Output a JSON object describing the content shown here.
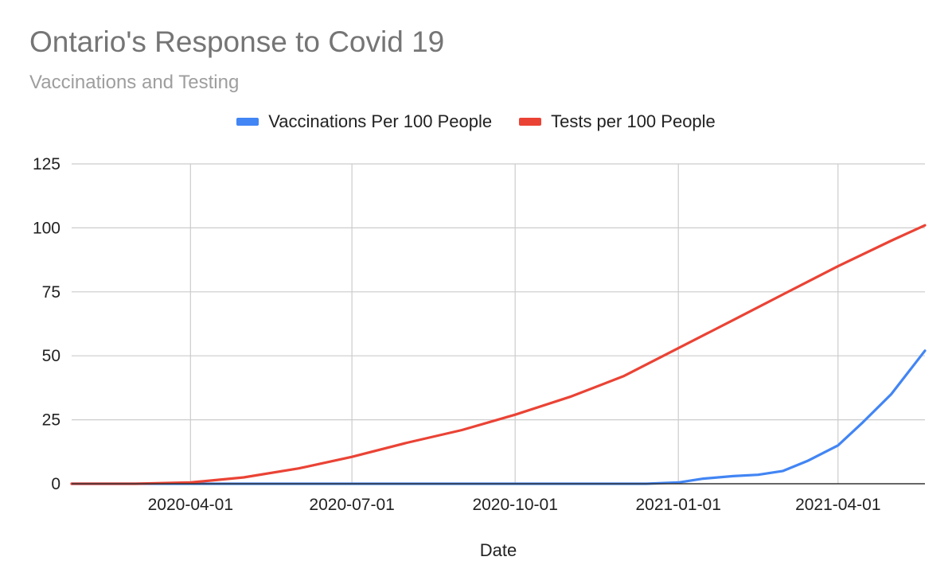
{
  "chart_data": {
    "type": "line",
    "title": "Ontario's Response to Covid 19",
    "subtitle": "Vaccinations and Testing",
    "xlabel": "Date",
    "ylabel": "",
    "xlim": [
      "2020-01-25",
      "2021-05-20"
    ],
    "ylim": [
      0,
      125
    ],
    "y_ticks": [
      0,
      25,
      50,
      75,
      100,
      125
    ],
    "x_ticks": [
      "2020-04-01",
      "2020-07-01",
      "2020-10-01",
      "2021-01-01",
      "2021-04-01"
    ],
    "grid": true,
    "legend_position": "top",
    "series": [
      {
        "name": "Vaccinations Per 100 People",
        "color": "#4285f4",
        "x": [
          "2020-01-25",
          "2020-06-01",
          "2020-10-01",
          "2020-12-14",
          "2021-01-01",
          "2021-01-15",
          "2021-02-01",
          "2021-02-15",
          "2021-03-01",
          "2021-03-15",
          "2021-04-01",
          "2021-04-15",
          "2021-05-01",
          "2021-05-20"
        ],
        "values": [
          0,
          0,
          0,
          0,
          0.5,
          2,
          3,
          3.5,
          5,
          9,
          15,
          24,
          35,
          52
        ]
      },
      {
        "name": "Tests per 100 People",
        "color": "#ea4335",
        "x": [
          "2020-01-25",
          "2020-03-01",
          "2020-04-01",
          "2020-05-01",
          "2020-06-01",
          "2020-07-01",
          "2020-08-01",
          "2020-09-01",
          "2020-10-01",
          "2020-11-01",
          "2020-12-01",
          "2021-01-01",
          "2021-02-01",
          "2021-03-01",
          "2021-04-01",
          "2021-05-01",
          "2021-05-20"
        ],
        "values": [
          0,
          0,
          0.5,
          2.5,
          6,
          10.5,
          16,
          21,
          27,
          34,
          42,
          53,
          64,
          74,
          85,
          95,
          101
        ]
      }
    ]
  }
}
